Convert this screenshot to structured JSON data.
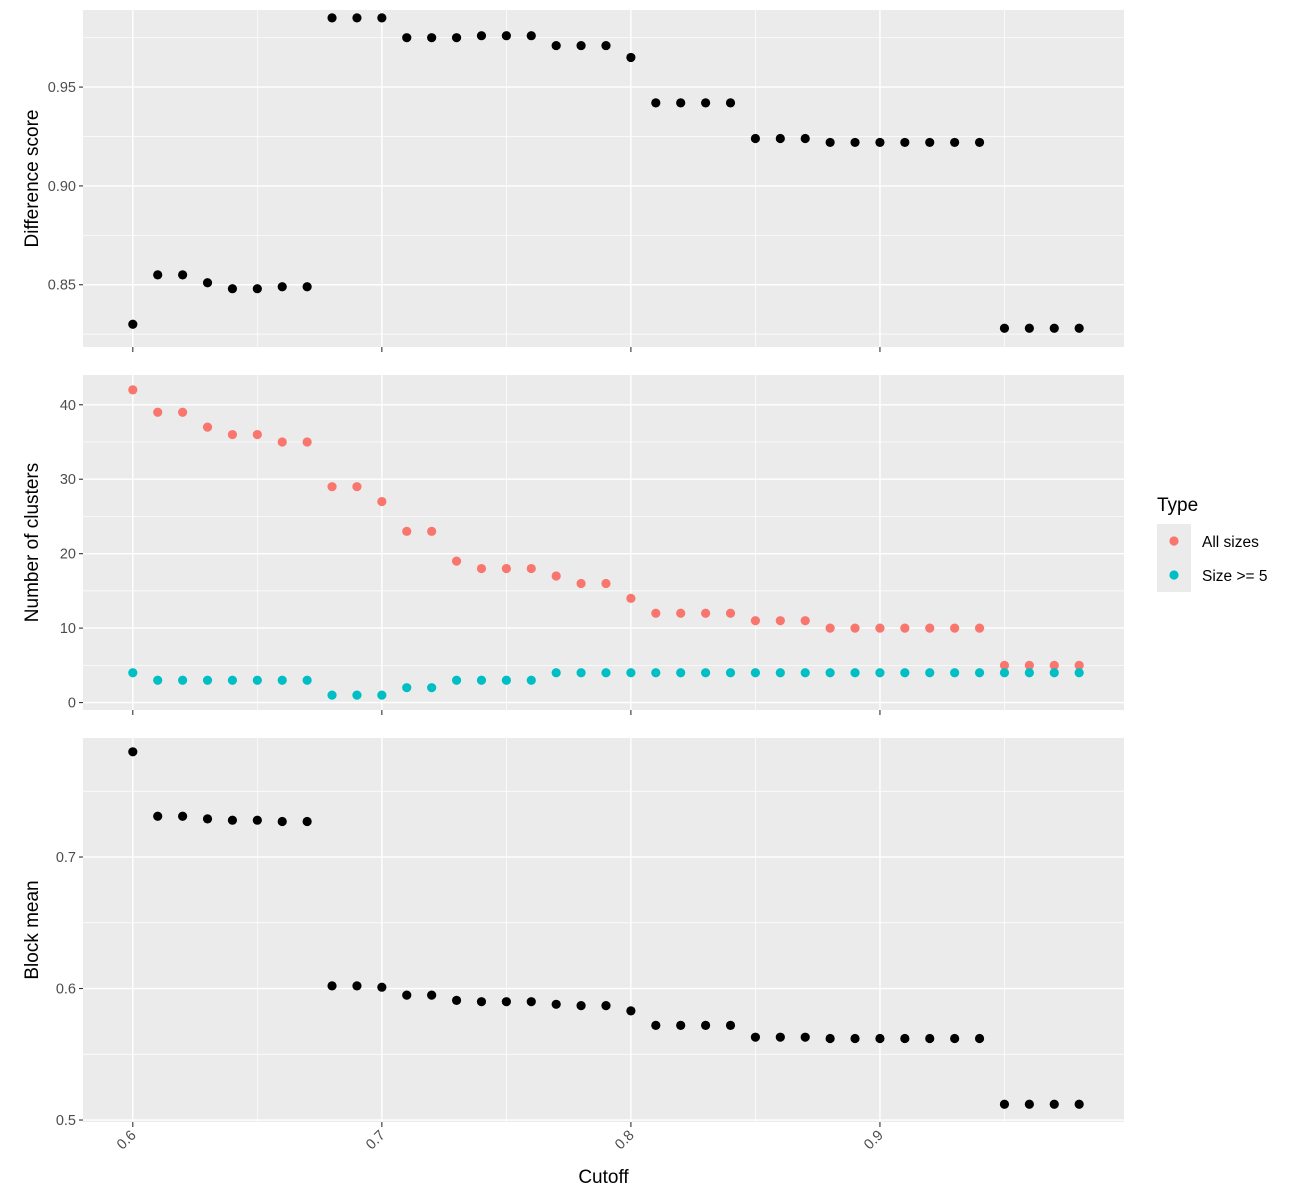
{
  "chart_data": {
    "type": "scatter",
    "xlabel": "Cutoff",
    "x_ticks": [
      0.6,
      0.7,
      0.8,
      0.9
    ],
    "x_tick_labels": [
      "0.6",
      "0.7",
      "0.8",
      "0.9"
    ],
    "xlim": [
      0.58,
      0.998
    ],
    "x": [
      0.6,
      0.61,
      0.62,
      0.63,
      0.64,
      0.65,
      0.66,
      0.67,
      0.68,
      0.69,
      0.7,
      0.71,
      0.72,
      0.73,
      0.74,
      0.75,
      0.76,
      0.77,
      0.78,
      0.79,
      0.8,
      0.81,
      0.82,
      0.83,
      0.84,
      0.85,
      0.86,
      0.87,
      0.88,
      0.89,
      0.9,
      0.91,
      0.92,
      0.93,
      0.94,
      0.95,
      0.96,
      0.97,
      0.98
    ],
    "legend": {
      "title": "Type",
      "position": "right",
      "entries": [
        {
          "label": "All sizes",
          "color": "#f8766d"
        },
        {
          "label": "Size >= 5",
          "color": "#00bfc4"
        }
      ]
    },
    "panels": [
      {
        "ylabel": "Difference score",
        "ylim": [
          0.8185,
          0.989
        ],
        "y_ticks": [
          0.85,
          0.9,
          0.95
        ],
        "y_tick_labels": [
          "0.85",
          "0.90",
          "0.95"
        ],
        "series": [
          {
            "color": "#000000",
            "values": [
              0.83,
              0.855,
              0.855,
              0.851,
              0.848,
              0.848,
              0.849,
              0.849,
              0.985,
              0.985,
              0.985,
              0.975,
              0.975,
              0.975,
              0.976,
              0.976,
              0.976,
              0.971,
              0.971,
              0.971,
              0.965,
              0.942,
              0.942,
              0.942,
              0.942,
              0.924,
              0.924,
              0.924,
              0.922,
              0.922,
              0.922,
              0.922,
              0.922,
              0.922,
              0.922,
              0.828,
              0.828,
              0.828,
              0.828
            ]
          }
        ]
      },
      {
        "ylabel": "Number of clusters",
        "ylim": [
          -1,
          44
        ],
        "y_ticks": [
          0,
          10,
          20,
          30,
          40
        ],
        "y_tick_labels": [
          "0",
          "10",
          "20",
          "30",
          "40"
        ],
        "series": [
          {
            "name": "All sizes",
            "color": "#f8766d",
            "values": [
              42,
              39,
              39,
              37,
              36,
              36,
              35,
              35,
              29,
              29,
              27,
              23,
              23,
              19,
              18,
              18,
              18,
              17,
              16,
              16,
              14,
              12,
              12,
              12,
              12,
              11,
              11,
              11,
              10,
              10,
              10,
              10,
              10,
              10,
              10,
              5,
              5,
              5,
              5
            ]
          },
          {
            "name": "Size >= 5",
            "color": "#00bfc4",
            "values": [
              4,
              3,
              3,
              3,
              3,
              3,
              3,
              3,
              1,
              1,
              1,
              2,
              2,
              3,
              3,
              3,
              3,
              4,
              4,
              4,
              4,
              4,
              4,
              4,
              4,
              4,
              4,
              4,
              4,
              4,
              4,
              4,
              4,
              4,
              4,
              4,
              4,
              4,
              4
            ]
          }
        ]
      },
      {
        "ylabel": "Block mean",
        "ylim": [
          0.4985,
          0.7905
        ],
        "y_ticks": [
          0.5,
          0.6,
          0.7
        ],
        "y_tick_labels": [
          "0.5",
          "0.6",
          "0.7"
        ],
        "series": [
          {
            "color": "#000000",
            "values": [
              0.78,
              0.731,
              0.731,
              0.729,
              0.728,
              0.728,
              0.727,
              0.727,
              0.602,
              0.602,
              0.601,
              0.595,
              0.595,
              0.591,
              0.59,
              0.59,
              0.59,
              0.588,
              0.587,
              0.587,
              0.583,
              0.572,
              0.572,
              0.572,
              0.572,
              0.563,
              0.563,
              0.563,
              0.562,
              0.562,
              0.562,
              0.562,
              0.562,
              0.562,
              0.562,
              0.512,
              0.512,
              0.512,
              0.512
            ]
          }
        ]
      }
    ]
  }
}
